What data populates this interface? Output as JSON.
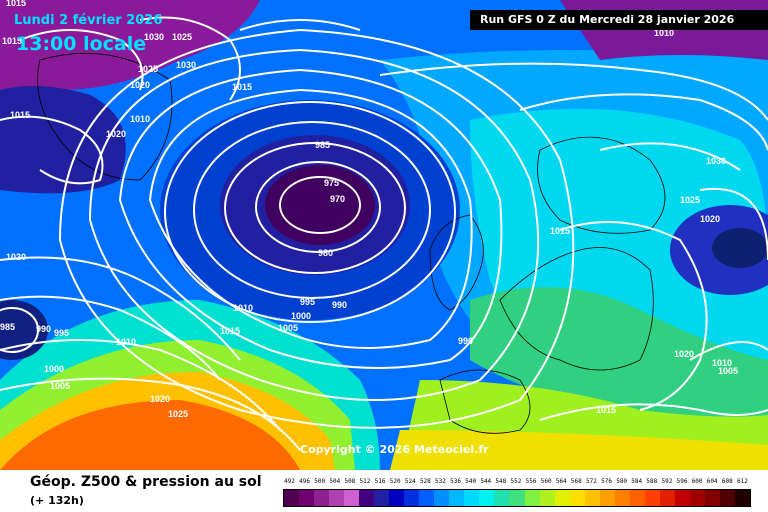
{
  "header": {
    "date": "Lundi 2 février 2026",
    "local_time": "13:00 locale",
    "run": "Run GFS 0 Z du Mercredi 28 janvier 2026"
  },
  "copyright": "Copyright © 2026 Meteociel.fr",
  "footer": {
    "title": "Géop. Z500 & pression au sol",
    "forecast_offset": "(+ 132h)"
  },
  "pressure_labels": [
    "1015",
    "1030",
    "1025",
    "1025",
    "1030",
    "1020",
    "1010",
    "1015",
    "1015",
    "1020",
    "985",
    "975",
    "970",
    "980",
    "995",
    "990",
    "1000",
    "1005",
    "1010",
    "1015",
    "990",
    "1015",
    "1030",
    "1025",
    "1020",
    "1010",
    "1020",
    "1005",
    "1015",
    "1010",
    "985",
    "990",
    "995",
    "1000",
    "1005",
    "1020",
    "1025",
    "1010",
    "1020",
    "1015"
  ],
  "scale": {
    "labels": [
      "492",
      "496",
      "500",
      "504",
      "508",
      "512",
      "516",
      "520",
      "524",
      "528",
      "532",
      "536",
      "540",
      "544",
      "548",
      "552",
      "556",
      "560",
      "564",
      "568",
      "572",
      "576",
      "580",
      "584",
      "588",
      "592",
      "596",
      "600",
      "604",
      "608",
      "612"
    ],
    "colors": [
      "#500050",
      "#700070",
      "#902090",
      "#b040b0",
      "#d060d0",
      "#400080",
      "#2020a0",
      "#0000c0",
      "#0030e0",
      "#0060ff",
      "#0090ff",
      "#00b8ff",
      "#00d8ff",
      "#00f0f0",
      "#20e0b0",
      "#40e080",
      "#80f040",
      "#b0f020",
      "#e0f000",
      "#ffe000",
      "#ffc000",
      "#ffa000",
      "#ff8000",
      "#ff6000",
      "#ff4000",
      "#e02000",
      "#c00000",
      "#a00000",
      "#800000",
      "#500000",
      "#200000"
    ]
  }
}
